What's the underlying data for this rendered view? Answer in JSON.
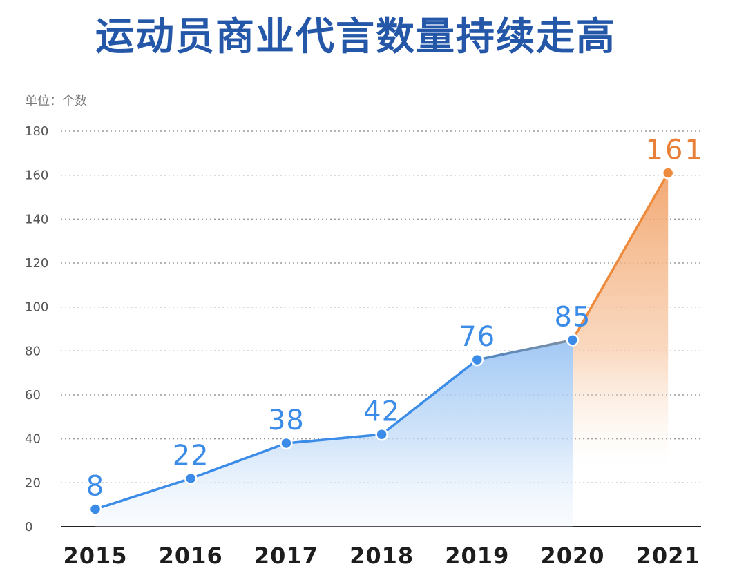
{
  "chart_data": {
    "type": "line",
    "title": "运动员商业代言数量持续走高",
    "unit_label": "单位：个数",
    "categories": [
      "2015",
      "2016",
      "2017",
      "2018",
      "2019",
      "2020",
      "2021"
    ],
    "values": [
      8,
      22,
      38,
      42,
      76,
      85,
      161
    ],
    "data_labels": [
      "8",
      "22",
      "38",
      "42",
      "76",
      "85",
      "161"
    ],
    "ylim": [
      0,
      180
    ],
    "yticks": [
      "0",
      "20",
      "40",
      "60",
      "80",
      "100",
      "120",
      "140",
      "160",
      "180"
    ],
    "grid": true,
    "legend": "none",
    "colors": {
      "main_line": "#3b8be8",
      "highlight_line": "#ee8a3c",
      "highlight_label": "#e9803a",
      "area_blue": "#a9cdf6",
      "area_orange": "#f3ab75",
      "title": "#2457a8"
    }
  }
}
